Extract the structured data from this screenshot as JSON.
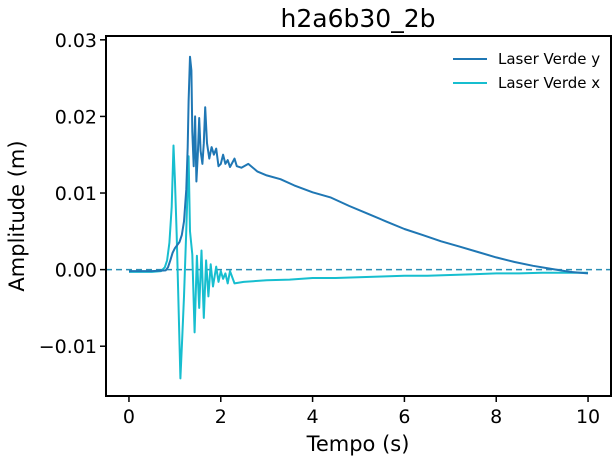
{
  "chart_data": {
    "type": "line",
    "title": "h2a6b30_2b",
    "xlabel": "Tempo (s)",
    "ylabel": "Amplitude (m)",
    "xlim": [
      -0.5,
      10.5
    ],
    "ylim": [
      -0.0165,
      0.0305
    ],
    "xticks": [
      0,
      2,
      4,
      6,
      8,
      10
    ],
    "xtick_labels": [
      "0",
      "2",
      "4",
      "6",
      "8",
      "10"
    ],
    "yticks": [
      -0.01,
      0.0,
      0.01,
      0.02,
      0.03
    ],
    "ytick_labels": [
      "−0.01",
      "0.00",
      "0.01",
      "0.02",
      "0.03"
    ],
    "grid": false,
    "legend_position": "top-right",
    "reference_line": {
      "y": 0.0,
      "style": "dashed",
      "color": "#2a8fb5"
    },
    "series": [
      {
        "name": "Laser Verde y",
        "color": "#1f77b4",
        "points": [
          [
            0.0,
            -0.0002
          ],
          [
            0.5,
            -0.0002
          ],
          [
            0.8,
            -0.0001
          ],
          [
            0.85,
            0.0003
          ],
          [
            0.9,
            0.0012
          ],
          [
            0.95,
            0.0022
          ],
          [
            1.0,
            0.0028
          ],
          [
            1.05,
            0.0032
          ],
          [
            1.1,
            0.0036
          ],
          [
            1.15,
            0.0045
          ],
          [
            1.2,
            0.0063
          ],
          [
            1.25,
            0.0105
          ],
          [
            1.28,
            0.016
          ],
          [
            1.3,
            0.022
          ],
          [
            1.33,
            0.0278
          ],
          [
            1.36,
            0.026
          ],
          [
            1.38,
            0.018
          ],
          [
            1.41,
            0.0135
          ],
          [
            1.44,
            0.02
          ],
          [
            1.47,
            0.0115
          ],
          [
            1.5,
            0.015
          ],
          [
            1.53,
            0.0198
          ],
          [
            1.56,
            0.0155
          ],
          [
            1.6,
            0.0138
          ],
          [
            1.63,
            0.0165
          ],
          [
            1.66,
            0.0212
          ],
          [
            1.7,
            0.0165
          ],
          [
            1.75,
            0.0145
          ],
          [
            1.8,
            0.016
          ],
          [
            1.85,
            0.015
          ],
          [
            1.9,
            0.0158
          ],
          [
            1.95,
            0.0135
          ],
          [
            2.0,
            0.0138
          ],
          [
            2.05,
            0.015
          ],
          [
            2.1,
            0.0138
          ],
          [
            2.15,
            0.0143
          ],
          [
            2.2,
            0.0134
          ],
          [
            2.3,
            0.0145
          ],
          [
            2.35,
            0.0135
          ],
          [
            2.45,
            0.0133
          ],
          [
            2.6,
            0.0138
          ],
          [
            2.8,
            0.0128
          ],
          [
            3.0,
            0.0123
          ],
          [
            3.3,
            0.0118
          ],
          [
            3.6,
            0.011
          ],
          [
            4.0,
            0.0101
          ],
          [
            4.4,
            0.0094
          ],
          [
            4.8,
            0.0083
          ],
          [
            5.2,
            0.0073
          ],
          [
            5.6,
            0.0063
          ],
          [
            6.0,
            0.0053
          ],
          [
            6.4,
            0.0045
          ],
          [
            6.8,
            0.0037
          ],
          [
            7.2,
            0.003
          ],
          [
            7.6,
            0.0023
          ],
          [
            8.0,
            0.0016
          ],
          [
            8.4,
            0.001
          ],
          [
            8.8,
            0.0005
          ],
          [
            9.2,
            0.0001
          ],
          [
            9.6,
            -0.0003
          ],
          [
            10.0,
            -0.0005
          ]
        ]
      },
      {
        "name": "Laser Verde x",
        "color": "#17becf",
        "points": [
          [
            0.0,
            -0.0003
          ],
          [
            0.5,
            -0.0003
          ],
          [
            0.7,
            -0.0002
          ],
          [
            0.78,
            0.0003
          ],
          [
            0.83,
            0.0012
          ],
          [
            0.88,
            0.0035
          ],
          [
            0.93,
            0.0082
          ],
          [
            0.97,
            0.0162
          ],
          [
            1.0,
            0.0118
          ],
          [
            1.04,
            0.0045
          ],
          [
            1.08,
            -0.0045
          ],
          [
            1.12,
            -0.0142
          ],
          [
            1.16,
            -0.009
          ],
          [
            1.2,
            -0.0035
          ],
          [
            1.25,
            0.0052
          ],
          [
            1.3,
            0.0148
          ],
          [
            1.33,
            0.005
          ],
          [
            1.38,
            0.002
          ],
          [
            1.43,
            -0.0082
          ],
          [
            1.48,
            0.0018
          ],
          [
            1.53,
            -0.005
          ],
          [
            1.58,
            0.0025
          ],
          [
            1.63,
            -0.0063
          ],
          [
            1.68,
            0.0012
          ],
          [
            1.73,
            -0.0035
          ],
          [
            1.78,
            0.0007
          ],
          [
            1.83,
            -0.0022
          ],
          [
            1.9,
            0.0004
          ],
          [
            1.95,
            -0.0016
          ],
          [
            2.0,
            -0.0002
          ],
          [
            2.05,
            -0.0012
          ],
          [
            2.1,
            -0.0005
          ],
          [
            2.15,
            -0.0018
          ],
          [
            2.2,
            -0.0002
          ],
          [
            2.3,
            -0.0018
          ],
          [
            2.5,
            -0.0016
          ],
          [
            3.0,
            -0.0014
          ],
          [
            3.5,
            -0.0013
          ],
          [
            4.0,
            -0.0011
          ],
          [
            4.5,
            -0.0011
          ],
          [
            5.0,
            -0.001
          ],
          [
            5.5,
            -0.0009
          ],
          [
            6.0,
            -0.0008
          ],
          [
            6.5,
            -0.0008
          ],
          [
            7.0,
            -0.0007
          ],
          [
            7.5,
            -0.0006
          ],
          [
            8.0,
            -0.0005
          ],
          [
            8.5,
            -0.0005
          ],
          [
            9.0,
            -0.0004
          ],
          [
            9.5,
            -0.0004
          ],
          [
            10.0,
            -0.0004
          ]
        ]
      }
    ]
  }
}
